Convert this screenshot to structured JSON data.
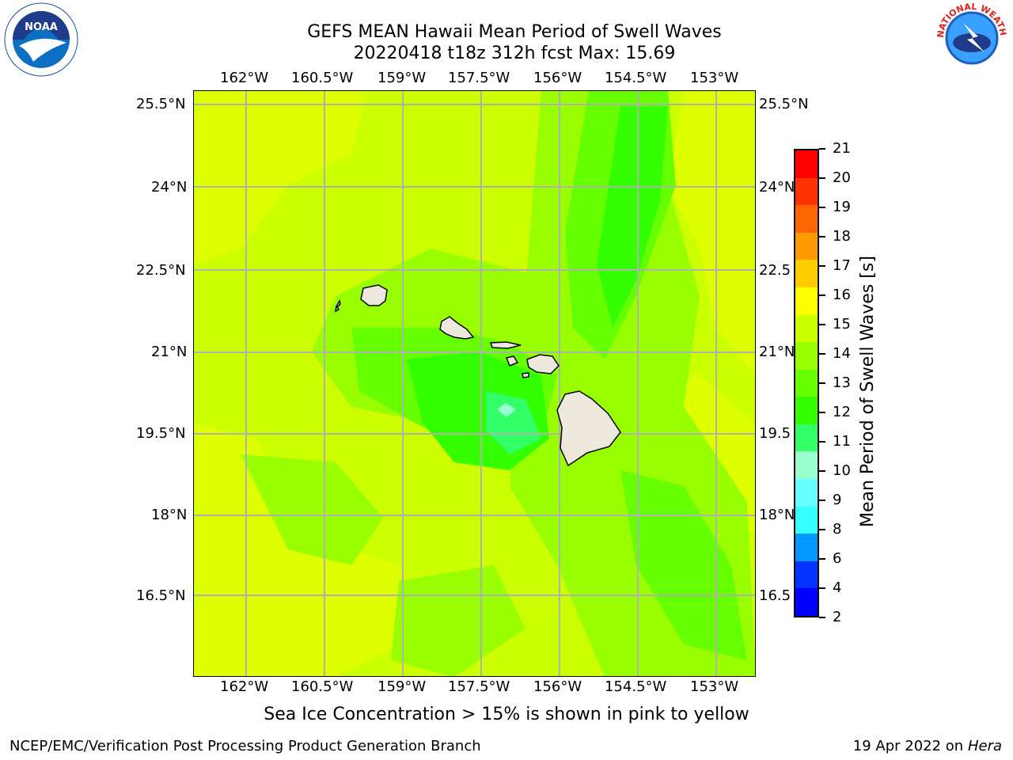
{
  "header": {
    "title_line1": "GEFS MEAN Hawaii Mean Period of Swell Waves",
    "title_line2": "20220418 t18z 312h fcst   Max: 15.69"
  },
  "logos": {
    "left": {
      "name": "NOAA",
      "ring_text": "NATIONAL OCEANIC AND ATMOSPHERIC ADMINISTRATION · U.S. DEPARTMENT OF COMMERCE"
    },
    "right": {
      "name": "NATIONAL WEATHER SERVICE"
    }
  },
  "map": {
    "lon_labels": [
      "162°W",
      "160.5°W",
      "159°W",
      "157.5°W",
      "156°W",
      "154.5°W",
      "153°W"
    ],
    "lat_labels": [
      "25.5°N",
      "24°N",
      "22.5°N",
      "21°N",
      "19.5°N",
      "18°N",
      "16.5°N"
    ],
    "lat_labels_right": [
      "25.5°N",
      "24°N",
      "22.5",
      "21°N",
      "19.5",
      "18°N",
      "16.5"
    ],
    "field": "Mean Period of Swell Waves",
    "field_range_shown": "11 to 15.69 s (mostly 12–15 s)"
  },
  "colorbar": {
    "title": "Mean Period of Swell Waves [s]",
    "ticks": [
      "21",
      "20",
      "19",
      "18",
      "17",
      "16",
      "15",
      "14",
      "13",
      "12",
      "11",
      "10",
      "9",
      "8",
      "6",
      "4",
      "2"
    ],
    "colors": [
      "#ff0000",
      "#ff3300",
      "#ff6600",
      "#ff9900",
      "#ffcc00",
      "#ffff00",
      "#ccff00",
      "#99ff00",
      "#66ff00",
      "#33ff00",
      "#33ff66",
      "#99ffcc",
      "#66ffff",
      "#33ffff",
      "#0099ff",
      "#0033ff",
      "#0000ff"
    ]
  },
  "notes": {
    "sea_ice": "Sea Ice Concentration > 15% is shown in pink to yellow"
  },
  "footer": {
    "left": "NCEP/EMC/Verification Post Processing Product Generation Branch",
    "right_prefix": "19 Apr 2022 on ",
    "right_host": "Hera"
  }
}
